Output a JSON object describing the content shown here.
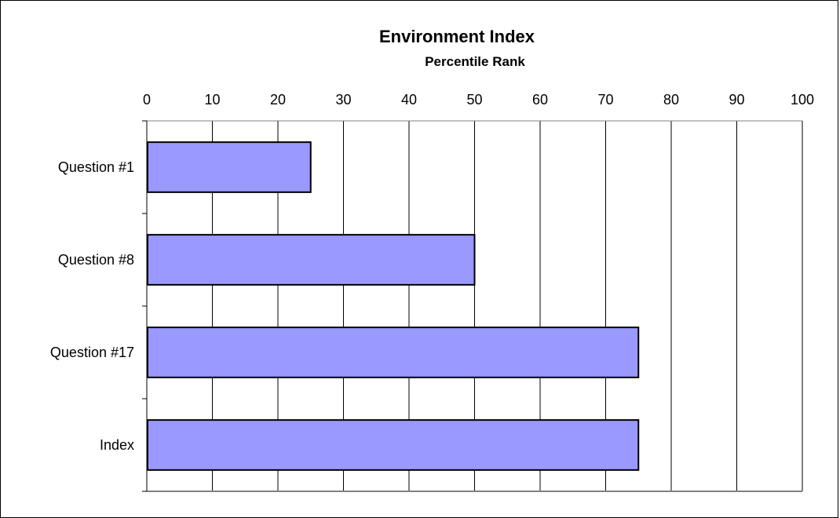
{
  "chart_data": {
    "type": "bar",
    "orientation": "horizontal",
    "title": "Environment Index",
    "subtitle": "Percentile Rank",
    "xlabel": "",
    "ylabel": "",
    "xlim": [
      0,
      100
    ],
    "x_ticks": [
      0,
      10,
      20,
      30,
      40,
      50,
      60,
      70,
      80,
      90,
      100
    ],
    "x_axis_position": "top",
    "categories": [
      "Question #1",
      "Question #8",
      "Question #17",
      "Index"
    ],
    "values": [
      25,
      50,
      75,
      75
    ],
    "bar_color": "#9999ff",
    "bar_outline": "#000000",
    "grid": "vertical",
    "legend": "none"
  }
}
